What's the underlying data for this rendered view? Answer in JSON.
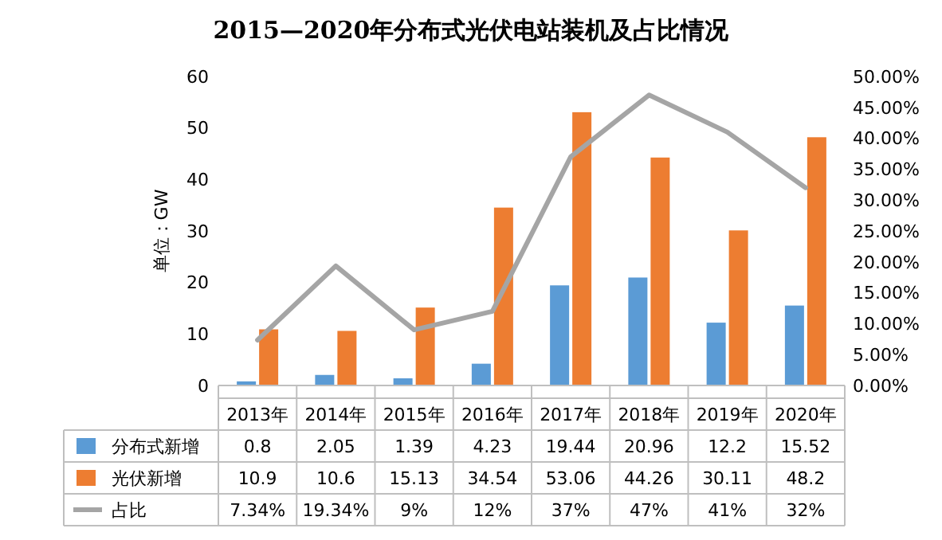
{
  "chart_data": {
    "type": "bar",
    "title": "2015—2020年分布式光伏电站装机及占比情况",
    "ylabel": "单位：GW",
    "categories": [
      "2013年",
      "2014年",
      "2015年",
      "2016年",
      "2017年",
      "2018年",
      "2019年",
      "2020年"
    ],
    "ylim": [
      0,
      60
    ],
    "yticks": [
      0,
      10,
      20,
      30,
      40,
      50,
      60
    ],
    "legend": "bottom",
    "y2lim": [
      0,
      50
    ],
    "y2ticks": [
      {
        "value": 0,
        "label": "0.00%"
      },
      {
        "value": 5,
        "label": "5.00%"
      },
      {
        "value": 10,
        "label": "10.00%"
      },
      {
        "value": 15,
        "label": "15.00%"
      },
      {
        "value": 20,
        "label": "20.00%"
      },
      {
        "value": 25,
        "label": "25.00%"
      },
      {
        "value": 30,
        "label": "30.00%"
      },
      {
        "value": 35,
        "label": "35.00%"
      },
      {
        "value": 40,
        "label": "40.00%"
      },
      {
        "value": 45,
        "label": "45.00%"
      },
      {
        "value": 50,
        "label": "50.00%"
      }
    ],
    "series": [
      {
        "name": "分布式新增",
        "color": "#5b9bd5",
        "values": [
          0.8,
          2.05,
          1.39,
          4.23,
          19.44,
          20.96,
          12.2,
          15.52
        ],
        "value_labels": [
          "0.8",
          "2.05",
          "1.39",
          "4.23",
          "19.44",
          "20.96",
          "12.2",
          "15.52"
        ]
      },
      {
        "name": "光伏新增",
        "color": "#ed7d31",
        "values": [
          10.9,
          10.6,
          15.13,
          34.54,
          53.06,
          44.26,
          30.11,
          48.2
        ],
        "value_labels": [
          "10.9",
          "10.6",
          "15.13",
          "34.54",
          "53.06",
          "44.26",
          "30.11",
          "48.2"
        ]
      },
      {
        "name": "占比",
        "type": "line",
        "axis": "y2",
        "color": "#a5a5a5",
        "values": [
          7.34,
          19.34,
          9,
          12,
          37,
          47,
          41,
          32
        ],
        "value_labels": [
          "7.34%",
          "19.34%",
          "9%",
          "12%",
          "37%",
          "47%",
          "41%",
          "32%"
        ]
      }
    ]
  }
}
